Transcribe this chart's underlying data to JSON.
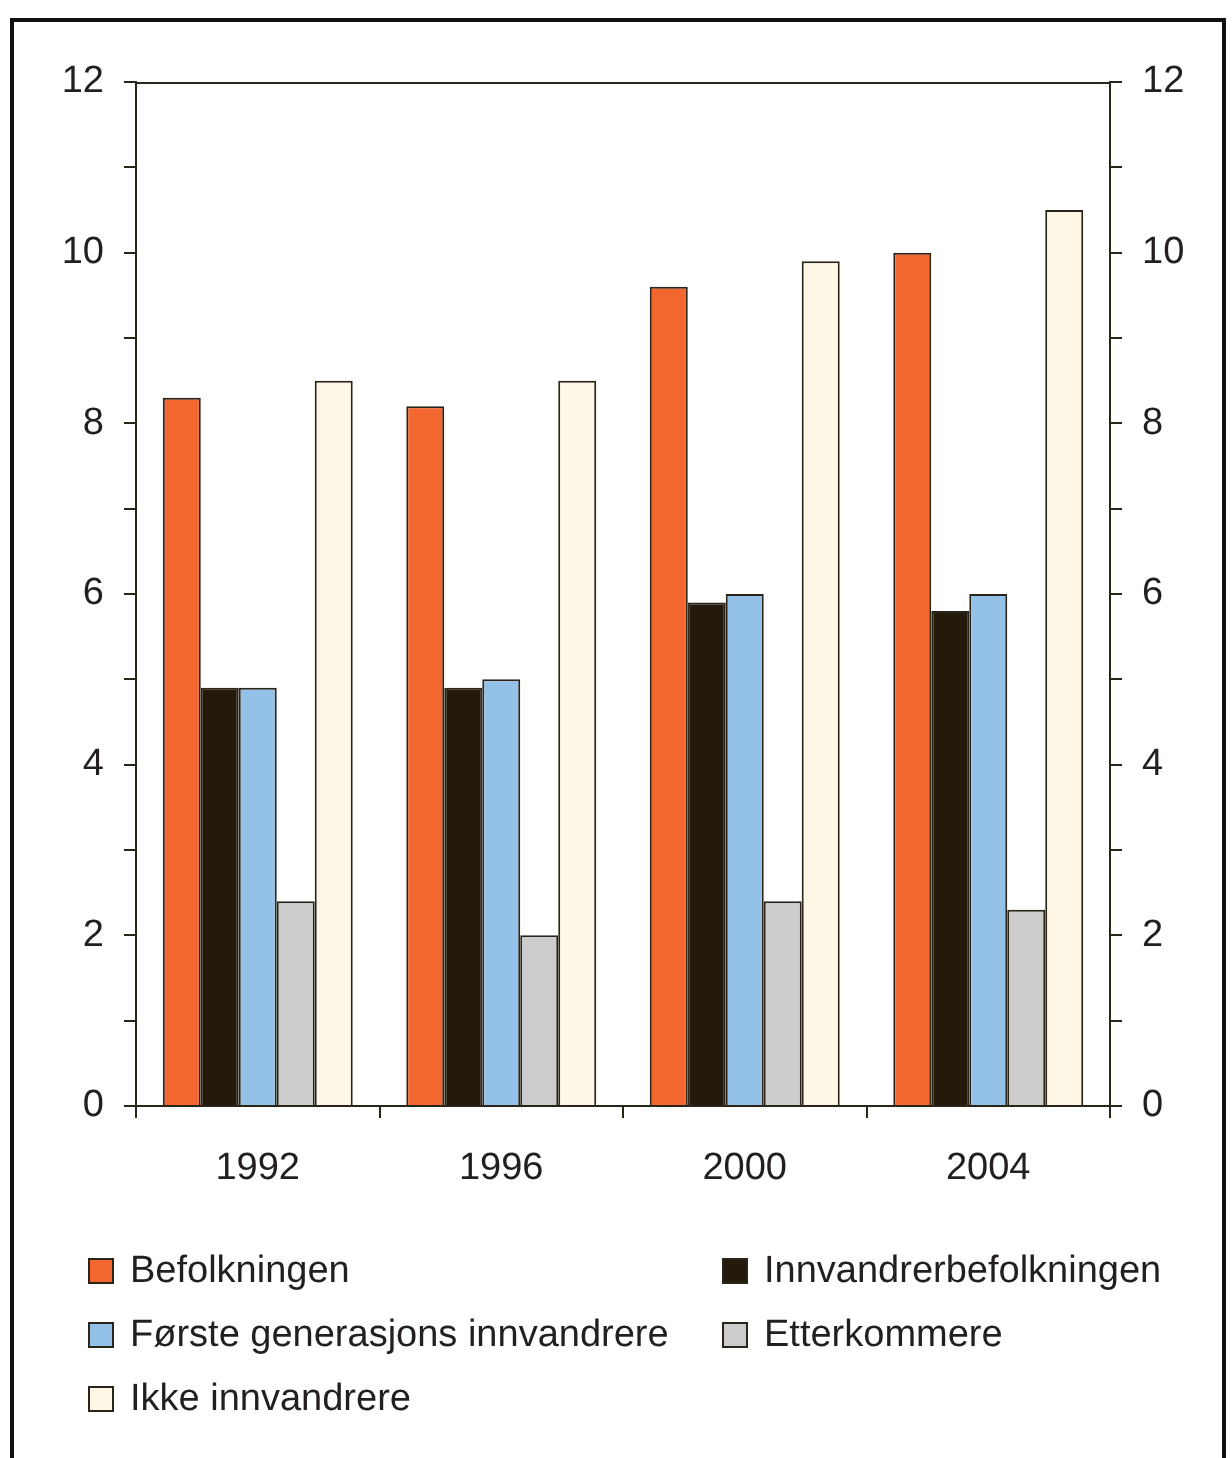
{
  "chart_data": {
    "type": "bar",
    "categories": [
      "1992",
      "1996",
      "2000",
      "2004"
    ],
    "series": [
      {
        "name": "Befolkningen",
        "color": "#f4662f",
        "values": [
          8.3,
          8.2,
          9.6,
          10.0
        ]
      },
      {
        "name": "Innvandrerbefolkningen",
        "color": "#231a0b",
        "values": [
          4.9,
          4.9,
          5.9,
          5.8
        ]
      },
      {
        "name": "Første generasjons innvandrere",
        "color": "#93c1e7",
        "values": [
          4.9,
          5.0,
          6.0,
          6.0
        ]
      },
      {
        "name": "Etterkommere",
        "color": "#cccccc",
        "values": [
          2.4,
          2.0,
          2.4,
          2.3
        ]
      },
      {
        "name": "Ikke innvandrere",
        "color": "#fff7e5",
        "values": [
          8.5,
          8.5,
          9.9,
          10.5
        ]
      }
    ],
    "ylim": [
      0,
      12
    ],
    "yticks": [
      0,
      {
        "value": 1,
        "label": null
      },
      2,
      {
        "value": 3,
        "label": null
      },
      4,
      {
        "value": 5,
        "label": null
      },
      6,
      {
        "value": 7,
        "label": null
      },
      8,
      {
        "value": 9,
        "label": null
      },
      10,
      {
        "value": 11,
        "label": null
      },
      12
    ],
    "y2lim": [
      0,
      12
    ],
    "y2ticks": [
      0,
      {
        "value": 1,
        "label": null
      },
      2,
      {
        "value": 3,
        "label": null
      },
      4,
      {
        "value": 5,
        "label": null
      },
      6,
      {
        "value": 7,
        "label": null
      },
      8,
      {
        "value": 9,
        "label": null
      },
      10,
      {
        "value": 11,
        "label": null
      },
      12
    ],
    "grid": false,
    "legend": "bottom"
  }
}
